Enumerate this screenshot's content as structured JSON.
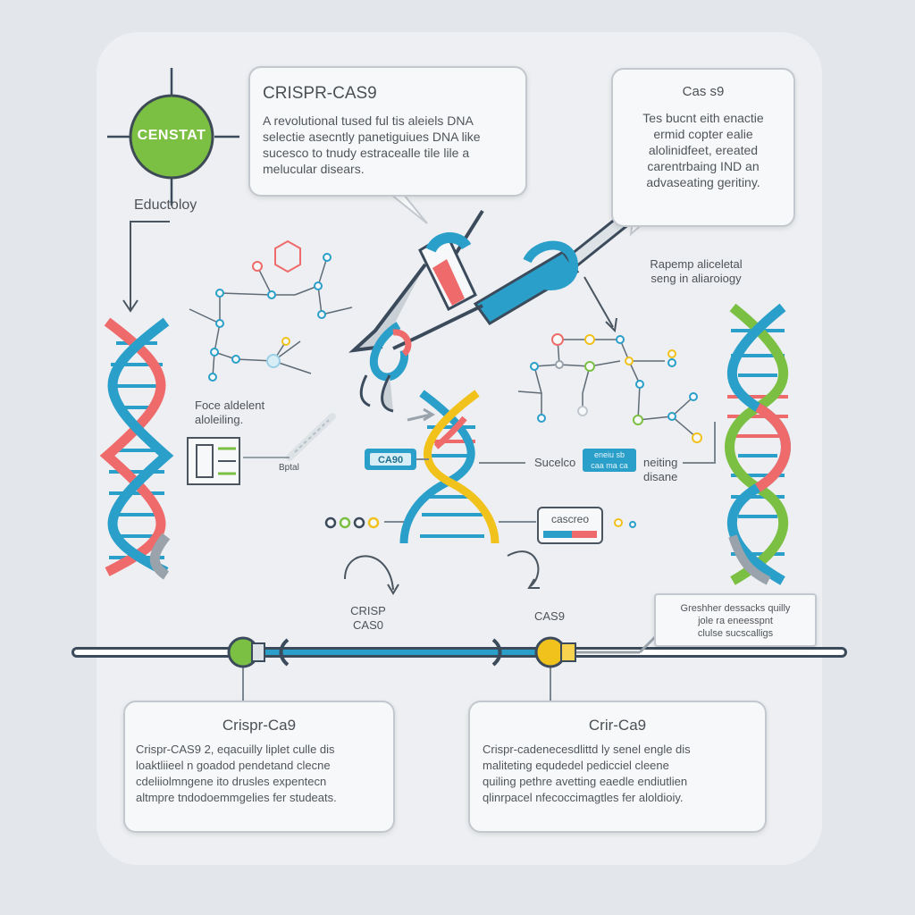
{
  "badge": {
    "text": "CENSTAT",
    "caption": "Eductoloy"
  },
  "callout_main": {
    "title": "CRISPR-CAS9",
    "lines": [
      "A revolutional tused ful tis aleiels DNA",
      "selectie asecntly panetiguiues DNA like",
      "sucesco to tnudy estracealle tile lile a",
      "melucular disears."
    ]
  },
  "callout_right": {
    "title": "Cas s9",
    "lines": [
      "Tes bucnt eith enactie",
      "ermid copter ealie",
      "alolinidfeet, ereated",
      "carentrbaing IND an",
      "advaseating geritiny."
    ]
  },
  "labels": {
    "right_note": [
      "Rapemp aliceletal",
      "seng in aliaroiogy"
    ],
    "left_note": [
      "Foce aldelent",
      "aloleiling."
    ],
    "pointer_small": "Bptal",
    "chip_left": "CA90",
    "mid_left": "Sucelco",
    "chip_mid": [
      "eneiu sb",
      "caa ma ca"
    ],
    "mid_right": [
      "neiting",
      "disane"
    ],
    "box_mid": "cascreo",
    "timeline_left": [
      "CRISP",
      "CAS0"
    ],
    "timeline_right": "CAS9",
    "note_right": [
      "Greshher dessacks quilly",
      "jole ra eneesspnt",
      "clulse sucscalligs"
    ]
  },
  "bottom_cards": [
    {
      "title": "Crispr-Ca9",
      "lines": [
        "Crispr-CAS9 2, eqacuilly liplet culle dis",
        "loaktliieel n goadod pendetand clecne",
        "cdeliiolmngene ito drusles expentecn",
        "altmpre tndodoemmgelies fer studeats."
      ]
    },
    {
      "title": "Crir-Ca9",
      "lines": [
        "Crispr-cadenecesdlittd ly senel engle dis",
        "maliteting equdedel pedicciel cleene",
        "quiling pethre avetting eaedle endiutlien",
        "qlinrpacel nfecoccimagtles fer aloldioiy."
      ]
    }
  ],
  "colors": {
    "teal": "#2a9fc9",
    "red": "#ef6b6b",
    "green": "#7bc043",
    "yellow": "#f1c21b",
    "grey": "#9aa3ab",
    "navy": "#34495e"
  }
}
